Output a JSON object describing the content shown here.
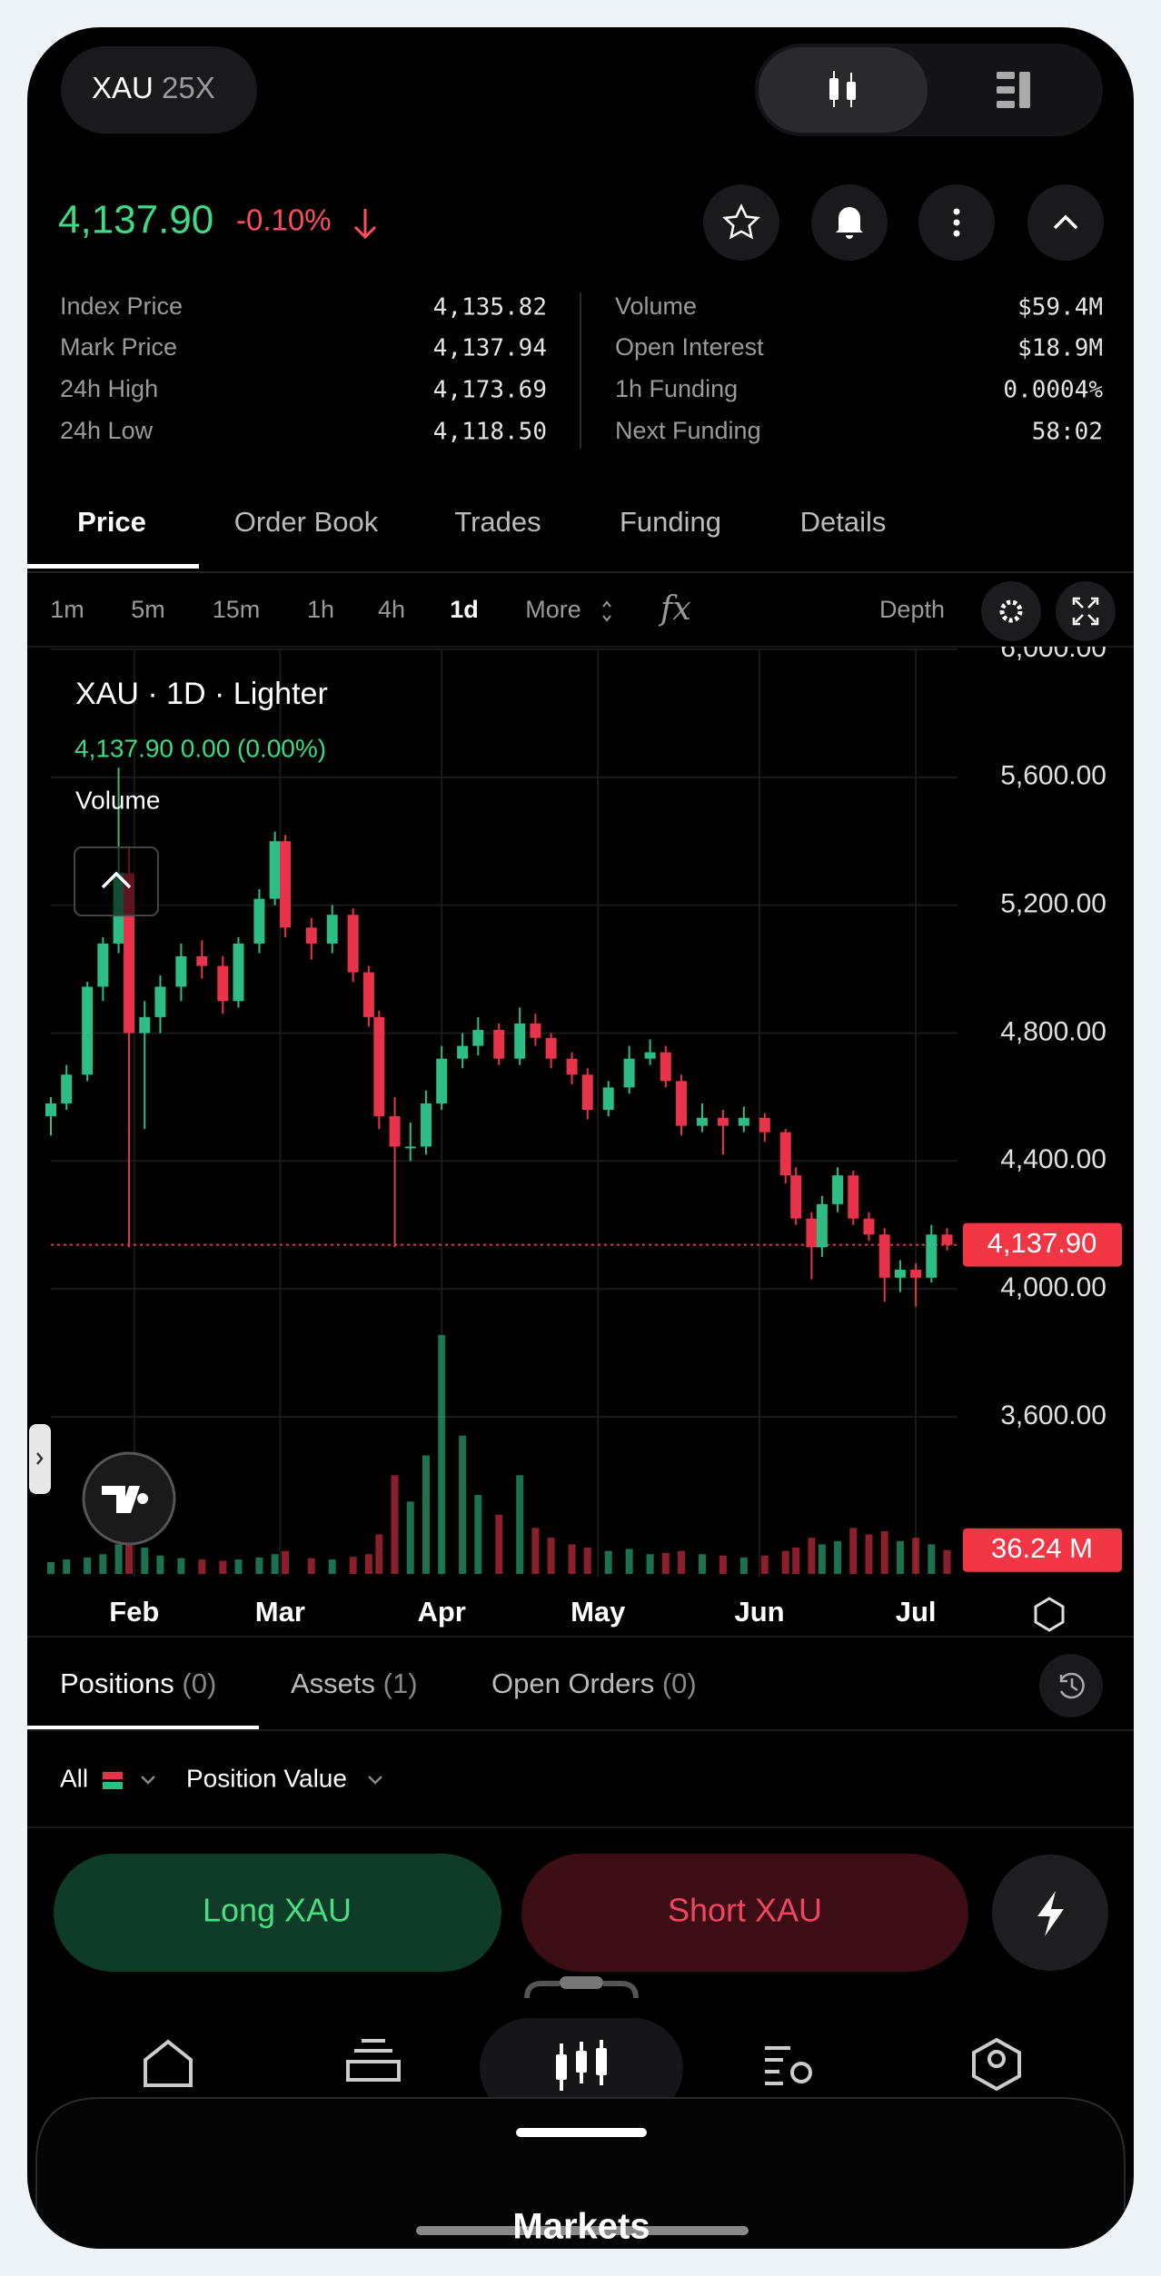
{
  "header": {
    "symbol": "XAU",
    "leverage": "25X",
    "price": "4,137.90",
    "change": "-0.10%"
  },
  "stats": {
    "left": [
      {
        "label": "Index Price",
        "value": "4,135.82"
      },
      {
        "label": "Mark Price",
        "value": "4,137.94"
      },
      {
        "label": "24h High",
        "value": "4,173.69"
      },
      {
        "label": "24h Low",
        "value": "4,118.50"
      }
    ],
    "right": [
      {
        "label": "Volume",
        "value": "$59.4M"
      },
      {
        "label": "Open Interest",
        "value": "$18.9M"
      },
      {
        "label": "1h Funding",
        "value": "0.0004%"
      },
      {
        "label": "Next Funding",
        "value": "58:02"
      }
    ]
  },
  "tabs": [
    "Price",
    "Order Book",
    "Trades",
    "Funding",
    "Details"
  ],
  "intervals": [
    "1m",
    "5m",
    "15m",
    "1h",
    "4h",
    "1d",
    "More"
  ],
  "indicators": "fx",
  "depth": "Depth",
  "chart_data": {
    "type": "candlestick",
    "title": "XAU · 1D · Lighter",
    "legend": "4,137.90 0.00 (0.00%)",
    "volume_label": "Volume",
    "up_color": "#2ebd85",
    "down_color": "#e8334a",
    "grid": true,
    "xlim": [
      16,
      190
    ],
    "xticks": [
      {
        "value": 32,
        "label": "Feb"
      },
      {
        "value": 60,
        "label": "Mar"
      },
      {
        "value": 91,
        "label": "Apr"
      },
      {
        "value": 121,
        "label": "May"
      },
      {
        "value": 152,
        "label": "Jun"
      },
      {
        "value": 182,
        "label": "Jul"
      }
    ],
    "ylim": [
      3100,
      6000
    ],
    "yticks": [
      {
        "value": 3600,
        "label": "3,600.00"
      },
      {
        "value": 4000,
        "label": "4,000.00"
      },
      {
        "value": 4400,
        "label": "4,400.00"
      },
      {
        "value": 4800,
        "label": "4,800.00"
      },
      {
        "value": 5200,
        "label": "5,200.00"
      },
      {
        "value": 5600,
        "label": "5,600.00"
      },
      {
        "value": 6000,
        "label": "6,000.00"
      }
    ],
    "volume_lim": [
      0,
      400
    ],
    "price_line": {
      "value": 4137.9,
      "label": "4,137.90"
    },
    "volume_badge": {
      "value": 36.24,
      "label": "36.24 M"
    },
    "candles": [
      {
        "x": 16,
        "open": 4540,
        "high": 4600,
        "low": 4480,
        "close": 4580,
        "volume": 18
      },
      {
        "x": 19,
        "open": 4580,
        "high": 4700,
        "low": 4560,
        "close": 4670,
        "volume": 22
      },
      {
        "x": 23,
        "open": 4670,
        "high": 4960,
        "low": 4650,
        "close": 4945,
        "volume": 25
      },
      {
        "x": 26,
        "open": 4945,
        "high": 5100,
        "low": 4900,
        "close": 5080,
        "volume": 30
      },
      {
        "x": 29,
        "open": 5080,
        "high": 5630,
        "low": 5050,
        "close": 5300,
        "volume": 45
      },
      {
        "x": 31,
        "open": 5300,
        "high": 5380,
        "low": 4130,
        "close": 4800,
        "volume": 60
      },
      {
        "x": 34,
        "open": 4800,
        "high": 4900,
        "low": 4500,
        "close": 4850,
        "volume": 40
      },
      {
        "x": 37,
        "open": 4850,
        "high": 4980,
        "low": 4800,
        "close": 4945,
        "volume": 28
      },
      {
        "x": 41,
        "open": 4945,
        "high": 5080,
        "low": 4900,
        "close": 5040,
        "volume": 24
      },
      {
        "x": 45,
        "open": 5040,
        "high": 5090,
        "low": 4970,
        "close": 5010,
        "volume": 22
      },
      {
        "x": 49,
        "open": 5010,
        "high": 5040,
        "low": 4860,
        "close": 4900,
        "volume": 20
      },
      {
        "x": 52,
        "open": 4900,
        "high": 5100,
        "low": 4880,
        "close": 5080,
        "volume": 22
      },
      {
        "x": 56,
        "open": 5080,
        "high": 5250,
        "low": 5050,
        "close": 5220,
        "volume": 25
      },
      {
        "x": 59,
        "open": 5220,
        "high": 5430,
        "low": 5200,
        "close": 5400,
        "volume": 30
      },
      {
        "x": 61,
        "open": 5400,
        "high": 5420,
        "low": 5100,
        "close": 5130,
        "volume": 35
      },
      {
        "x": 66,
        "open": 5130,
        "high": 5160,
        "low": 5030,
        "close": 5080,
        "volume": 24
      },
      {
        "x": 70,
        "open": 5080,
        "high": 5200,
        "low": 5050,
        "close": 5170,
        "volume": 22
      },
      {
        "x": 74,
        "open": 5170,
        "high": 5190,
        "low": 4960,
        "close": 4990,
        "volume": 26
      },
      {
        "x": 77,
        "open": 4990,
        "high": 5010,
        "low": 4820,
        "close": 4850,
        "volume": 30
      },
      {
        "x": 79,
        "open": 4850,
        "high": 4870,
        "low": 4500,
        "close": 4540,
        "volume": 60
      },
      {
        "x": 82,
        "open": 4540,
        "high": 4600,
        "low": 4130,
        "close": 4445,
        "volume": 150
      },
      {
        "x": 85,
        "open": 4445,
        "high": 4520,
        "low": 4400,
        "close": 4445,
        "volume": 110
      },
      {
        "x": 88,
        "open": 4445,
        "high": 4620,
        "low": 4420,
        "close": 4580,
        "volume": 180
      },
      {
        "x": 91,
        "open": 4580,
        "high": 4760,
        "low": 4560,
        "close": 4720,
        "volume": 363
      },
      {
        "x": 95,
        "open": 4720,
        "high": 4800,
        "low": 4690,
        "close": 4760,
        "volume": 210
      },
      {
        "x": 98,
        "open": 4760,
        "high": 4850,
        "low": 4730,
        "close": 4810,
        "volume": 120
      },
      {
        "x": 102,
        "open": 4810,
        "high": 4830,
        "low": 4700,
        "close": 4720,
        "volume": 90
      },
      {
        "x": 106,
        "open": 4720,
        "high": 4880,
        "low": 4700,
        "close": 4830,
        "volume": 150
      },
      {
        "x": 109,
        "open": 4830,
        "high": 4860,
        "low": 4760,
        "close": 4785,
        "volume": 70
      },
      {
        "x": 112,
        "open": 4785,
        "high": 4800,
        "low": 4690,
        "close": 4720,
        "volume": 55
      },
      {
        "x": 116,
        "open": 4720,
        "high": 4740,
        "low": 4640,
        "close": 4670,
        "volume": 45
      },
      {
        "x": 119,
        "open": 4670,
        "high": 4690,
        "low": 4530,
        "close": 4560,
        "volume": 40
      },
      {
        "x": 123,
        "open": 4560,
        "high": 4650,
        "low": 4540,
        "close": 4630,
        "volume": 35
      },
      {
        "x": 127,
        "open": 4630,
        "high": 4760,
        "low": 4610,
        "close": 4720,
        "volume": 38
      },
      {
        "x": 131,
        "open": 4720,
        "high": 4780,
        "low": 4700,
        "close": 4740,
        "volume": 30
      },
      {
        "x": 134,
        "open": 4740,
        "high": 4760,
        "low": 4630,
        "close": 4650,
        "volume": 32
      },
      {
        "x": 137,
        "open": 4650,
        "high": 4670,
        "low": 4480,
        "close": 4510,
        "volume": 35
      },
      {
        "x": 141,
        "open": 4510,
        "high": 4580,
        "low": 4490,
        "close": 4535,
        "volume": 30
      },
      {
        "x": 145,
        "open": 4535,
        "high": 4560,
        "low": 4420,
        "close": 4510,
        "volume": 28
      },
      {
        "x": 149,
        "open": 4510,
        "high": 4570,
        "low": 4490,
        "close": 4535,
        "volume": 25
      },
      {
        "x": 153,
        "open": 4535,
        "high": 4550,
        "low": 4460,
        "close": 4490,
        "volume": 28
      },
      {
        "x": 157,
        "open": 4490,
        "high": 4500,
        "low": 4330,
        "close": 4355,
        "volume": 35
      },
      {
        "x": 159,
        "open": 4355,
        "high": 4380,
        "low": 4200,
        "close": 4220,
        "volume": 40
      },
      {
        "x": 162,
        "open": 4220,
        "high": 4240,
        "low": 4030,
        "close": 4130,
        "volume": 55
      },
      {
        "x": 164,
        "open": 4130,
        "high": 4290,
        "low": 4100,
        "close": 4265,
        "volume": 45
      },
      {
        "x": 167,
        "open": 4265,
        "high": 4380,
        "low": 4240,
        "close": 4355,
        "volume": 50
      },
      {
        "x": 170,
        "open": 4355,
        "high": 4370,
        "low": 4200,
        "close": 4220,
        "volume": 70
      },
      {
        "x": 173,
        "open": 4220,
        "high": 4240,
        "low": 4150,
        "close": 4170,
        "volume": 60
      },
      {
        "x": 176,
        "open": 4170,
        "high": 4190,
        "low": 3960,
        "close": 4035,
        "volume": 65
      },
      {
        "x": 179,
        "open": 4035,
        "high": 4090,
        "low": 3990,
        "close": 4060,
        "volume": 50
      },
      {
        "x": 182,
        "open": 4060,
        "high": 4080,
        "low": 3945,
        "close": 4035,
        "volume": 55
      },
      {
        "x": 185,
        "open": 4035,
        "high": 4200,
        "low": 4020,
        "close": 4170,
        "volume": 45
      },
      {
        "x": 188,
        "open": 4170,
        "high": 4190,
        "low": 4120,
        "close": 4137.9,
        "volume": 36.24
      }
    ]
  },
  "bottom_tabs": [
    {
      "label": "Positions",
      "count": "(0)"
    },
    {
      "label": "Assets",
      "count": "(1)"
    },
    {
      "label": "Open Orders",
      "count": "(0)"
    }
  ],
  "filters": {
    "all": "All",
    "position_value": "Position Value"
  },
  "actions": {
    "long": "Long XAU",
    "short": "Short XAU"
  },
  "nav": {
    "label": "Markets"
  }
}
